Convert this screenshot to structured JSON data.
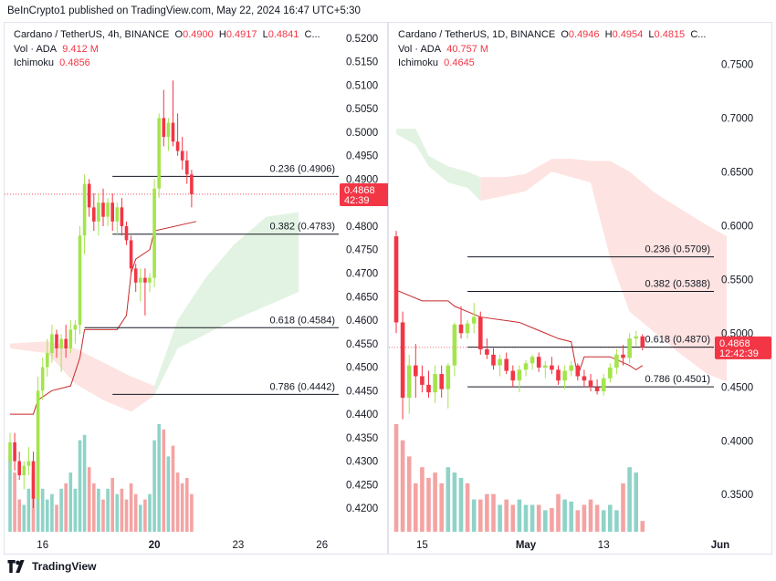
{
  "header": {
    "published": "BeInCrypto1 published on TradingView.com, May 22, 2024 16:47 UTC+5:30"
  },
  "footer": {
    "brand": "TradingView"
  },
  "colors": {
    "up": "#a4e44c",
    "down": "#f23645",
    "vol_up": "#8fd3c8",
    "vol_down": "#f4a3a3",
    "cloud_red": "#fde3e1",
    "cloud_green": "#e3f3e3",
    "fib_line": "#131722"
  },
  "chart_data": [
    {
      "type": "candlestick",
      "symbol": "Cardano / TetherUS, 4h, BINANCE",
      "ohlc": {
        "o_label": "O",
        "o": "0.4900",
        "h_label": "H",
        "h": "0.4917",
        "l_label": "L",
        "l": "0.4841",
        "c_label": "C..."
      },
      "vol_label": "Vol · ADA",
      "vol_value": "9.412 M",
      "ichimoku_label": "Ichimoku",
      "ichimoku_value": "0.4856",
      "y_ticks": [
        "0.5200",
        "0.5150",
        "0.5100",
        "0.5050",
        "0.5000",
        "0.4950",
        "0.4900",
        "0.4850",
        "0.4800",
        "0.4750",
        "0.4700",
        "0.4650",
        "0.4600",
        "0.4550",
        "0.4500",
        "0.4450",
        "0.4400",
        "0.4350",
        "0.4300",
        "0.4250",
        "0.4200"
      ],
      "ylim": [
        0.4175,
        0.5225
      ],
      "x_ticks": [
        {
          "label": "16",
          "index": 7,
          "bold": false
        },
        {
          "label": "20",
          "index": 31,
          "bold": true
        },
        {
          "label": "23",
          "index": 49,
          "bold": false
        },
        {
          "label": "26",
          "index": 67,
          "bold": false
        }
      ],
      "total_slots": 72,
      "fib_levels": [
        {
          "label": "0.236 (0.4906)",
          "value": 0.4906,
          "start_index": 22
        },
        {
          "label": "0.382 (0.4783)",
          "value": 0.4783,
          "start_index": 22
        },
        {
          "label": "0.618 (0.4584)",
          "value": 0.4584,
          "start_index": 16
        },
        {
          "label": "0.786 (0.4442)",
          "value": 0.4442,
          "start_index": 22
        }
      ],
      "price_tag": {
        "value": "0.4868",
        "time": "42:39",
        "price": 0.4868
      },
      "candles": [
        [
          0.43,
          0.436,
          0.428,
          0.434
        ],
        [
          0.434,
          0.436,
          0.428,
          0.43
        ],
        [
          0.43,
          0.432,
          0.426,
          0.427
        ],
        [
          0.427,
          0.43,
          0.424,
          0.429
        ],
        [
          0.429,
          0.433,
          0.427,
          0.43
        ],
        [
          0.43,
          0.432,
          0.42,
          0.422
        ],
        [
          0.422,
          0.448,
          0.42,
          0.445
        ],
        [
          0.445,
          0.452,
          0.443,
          0.45
        ],
        [
          0.45,
          0.456,
          0.448,
          0.453
        ],
        [
          0.453,
          0.459,
          0.451,
          0.457
        ],
        [
          0.457,
          0.458,
          0.452,
          0.454
        ],
        [
          0.454,
          0.457,
          0.449,
          0.456
        ],
        [
          0.456,
          0.459,
          0.452,
          0.454
        ],
        [
          0.454,
          0.46,
          0.453,
          0.458
        ],
        [
          0.458,
          0.46,
          0.455,
          0.459
        ],
        [
          0.459,
          0.48,
          0.457,
          0.478
        ],
        [
          0.478,
          0.491,
          0.474,
          0.489
        ],
        [
          0.489,
          0.49,
          0.482,
          0.484
        ],
        [
          0.484,
          0.487,
          0.479,
          0.481
        ],
        [
          0.481,
          0.487,
          0.478,
          0.485
        ],
        [
          0.485,
          0.488,
          0.48,
          0.482
        ],
        [
          0.482,
          0.486,
          0.48,
          0.485
        ],
        [
          0.485,
          0.487,
          0.479,
          0.481
        ],
        [
          0.481,
          0.485,
          0.478,
          0.484
        ],
        [
          0.484,
          0.486,
          0.478,
          0.48
        ],
        [
          0.48,
          0.481,
          0.476,
          0.477
        ],
        [
          0.477,
          0.478,
          0.47,
          0.471
        ],
        [
          0.471,
          0.472,
          0.466,
          0.468
        ],
        [
          0.468,
          0.471,
          0.464,
          0.469
        ],
        [
          0.469,
          0.471,
          0.461,
          0.468
        ],
        [
          0.468,
          0.47,
          0.466,
          0.469
        ],
        [
          0.469,
          0.49,
          0.467,
          0.488
        ],
        [
          0.488,
          0.504,
          0.486,
          0.503
        ],
        [
          0.503,
          0.509,
          0.497,
          0.499
        ],
        [
          0.499,
          0.503,
          0.496,
          0.502
        ],
        [
          0.502,
          0.511,
          0.497,
          0.498
        ],
        [
          0.498,
          0.504,
          0.495,
          0.496
        ],
        [
          0.496,
          0.499,
          0.492,
          0.494
        ],
        [
          0.494,
          0.496,
          0.489,
          0.491
        ],
        [
          0.491,
          0.492,
          0.484,
          0.4868
        ]
      ],
      "volumes": [
        0.7,
        0.55,
        0.3,
        0.25,
        0.4,
        0.55,
        0.7,
        0.4,
        0.3,
        0.35,
        0.25,
        0.4,
        0.45,
        0.55,
        0.4,
        0.85,
        0.9,
        0.6,
        0.45,
        0.4,
        0.3,
        0.4,
        0.5,
        0.35,
        0.4,
        0.3,
        0.45,
        0.35,
        0.25,
        0.3,
        0.35,
        0.85,
        1.0,
        0.95,
        0.7,
        0.8,
        0.55,
        0.45,
        0.5,
        0.35
      ],
      "vol_up": [
        true,
        false,
        false,
        true,
        true,
        false,
        true,
        true,
        true,
        true,
        false,
        true,
        false,
        true,
        true,
        true,
        true,
        false,
        false,
        true,
        false,
        true,
        false,
        true,
        false,
        false,
        false,
        false,
        true,
        false,
        true,
        true,
        true,
        false,
        true,
        false,
        false,
        false,
        false,
        false
      ],
      "tenkan": [
        [
          0,
          0.44
        ],
        [
          5,
          0.44
        ],
        [
          6,
          0.443
        ],
        [
          9,
          0.445
        ],
        [
          13,
          0.446
        ],
        [
          15,
          0.452
        ],
        [
          16,
          0.458
        ],
        [
          23,
          0.458
        ],
        [
          25,
          0.461
        ],
        [
          26,
          0.47
        ],
        [
          27,
          0.473
        ],
        [
          30,
          0.475
        ],
        [
          31,
          0.479
        ],
        [
          40,
          0.481
        ]
      ],
      "cloud": {
        "red": [
          [
            0,
            0.455,
            0.454
          ],
          [
            8,
            0.4555,
            0.453
          ],
          [
            14,
            0.454,
            0.4465
          ],
          [
            20,
            0.451,
            0.443
          ],
          [
            26,
            0.448,
            0.4405
          ],
          [
            31,
            0.446,
            0.444
          ]
        ],
        "green": [
          [
            31,
            0.444,
            0.446
          ],
          [
            36,
            0.454,
            0.46
          ],
          [
            42,
            0.457,
            0.469
          ],
          [
            48,
            0.46,
            0.476
          ],
          [
            55,
            0.463,
            0.482
          ],
          [
            62,
            0.466,
            0.483
          ]
        ]
      }
    },
    {
      "type": "candlestick",
      "symbol": "Cardano / TetherUS, 1D, BINANCE",
      "ohlc": {
        "o_label": "O",
        "o": "0.4946",
        "h_label": "H",
        "h": "0.4954",
        "l_label": "L",
        "l": "0.4815",
        "c_label": "C..."
      },
      "vol_label": "Vol · ADA",
      "vol_value": "40.757 M",
      "ichimoku_label": "Ichimoku",
      "ichimoku_value": "0.4645",
      "y_ticks": [
        "0.7500",
        "0.7000",
        "0.6500",
        "0.6000",
        "0.5500",
        "0.5000",
        "0.4500",
        "0.4000",
        "0.3500"
      ],
      "ylim": [
        0.318,
        0.785
      ],
      "x_ticks": [
        {
          "label": "15",
          "index": 4,
          "bold": false
        },
        {
          "label": "May",
          "index": 20,
          "bold": true
        },
        {
          "label": "13",
          "index": 32,
          "bold": false
        },
        {
          "label": "Jun",
          "index": 50,
          "bold": true
        }
      ],
      "total_slots": 52,
      "fib_levels": [
        {
          "label": "0.236 (0.5709)",
          "value": 0.5709,
          "start_index": 11
        },
        {
          "label": "0.382 (0.5388)",
          "value": 0.5388,
          "start_index": 11
        },
        {
          "label": "0.618 (0.4870)",
          "value": 0.487,
          "start_index": 11
        },
        {
          "label": "0.786 (0.4501)",
          "value": 0.4501,
          "start_index": 11
        }
      ],
      "price_tag": {
        "value": "0.4868",
        "time": "12:42:39",
        "price": 0.4868
      },
      "candles": [
        [
          0.59,
          0.595,
          0.5,
          0.51
        ],
        [
          0.51,
          0.52,
          0.42,
          0.44
        ],
        [
          0.44,
          0.48,
          0.425,
          0.47
        ],
        [
          0.47,
          0.49,
          0.44,
          0.46
        ],
        [
          0.46,
          0.47,
          0.445,
          0.452
        ],
        [
          0.452,
          0.465,
          0.44,
          0.445
        ],
        [
          0.445,
          0.47,
          0.435,
          0.462
        ],
        [
          0.462,
          0.47,
          0.44,
          0.448
        ],
        [
          0.448,
          0.472,
          0.43,
          0.47
        ],
        [
          0.47,
          0.51,
          0.46,
          0.508
        ],
        [
          0.508,
          0.525,
          0.495,
          0.5
        ],
        [
          0.5,
          0.512,
          0.495,
          0.509
        ],
        [
          0.509,
          0.528,
          0.5,
          0.515
        ],
        [
          0.515,
          0.52,
          0.48,
          0.485
        ],
        [
          0.485,
          0.495,
          0.476,
          0.48
        ],
        [
          0.48,
          0.486,
          0.466,
          0.47
        ],
        [
          0.47,
          0.48,
          0.46,
          0.476
        ],
        [
          0.476,
          0.482,
          0.462,
          0.465
        ],
        [
          0.465,
          0.47,
          0.45,
          0.456
        ],
        [
          0.456,
          0.47,
          0.445,
          0.466
        ],
        [
          0.466,
          0.475,
          0.46,
          0.472
        ],
        [
          0.472,
          0.48,
          0.466,
          0.478
        ],
        [
          0.478,
          0.482,
          0.464,
          0.468
        ],
        [
          0.468,
          0.474,
          0.458,
          0.47
        ],
        [
          0.47,
          0.478,
          0.462,
          0.466
        ],
        [
          0.466,
          0.47,
          0.452,
          0.456
        ],
        [
          0.456,
          0.47,
          0.448,
          0.465
        ],
        [
          0.465,
          0.474,
          0.46,
          0.47
        ],
        [
          0.47,
          0.472,
          0.456,
          0.46
        ],
        [
          0.46,
          0.466,
          0.45,
          0.456
        ],
        [
          0.456,
          0.462,
          0.446,
          0.45
        ],
        [
          0.45,
          0.457,
          0.443,
          0.446
        ],
        [
          0.446,
          0.462,
          0.442,
          0.458
        ],
        [
          0.458,
          0.472,
          0.454,
          0.468
        ],
        [
          0.468,
          0.485,
          0.462,
          0.48
        ],
        [
          0.48,
          0.489,
          0.47,
          0.477
        ],
        [
          0.477,
          0.5,
          0.472,
          0.495
        ],
        [
          0.495,
          0.502,
          0.488,
          0.497
        ],
        [
          0.497,
          0.499,
          0.484,
          0.4868
        ]
      ],
      "volumes": [
        1.0,
        0.85,
        0.7,
        0.45,
        0.6,
        0.5,
        0.55,
        0.45,
        0.6,
        0.55,
        0.5,
        0.45,
        0.3,
        0.3,
        0.35,
        0.35,
        0.25,
        0.3,
        0.25,
        0.3,
        0.25,
        0.25,
        0.25,
        0.2,
        0.22,
        0.35,
        0.3,
        0.28,
        0.2,
        0.25,
        0.3,
        0.25,
        0.2,
        0.25,
        0.2,
        0.45,
        0.6,
        0.55,
        0.1
      ],
      "vol_up": [
        false,
        false,
        false,
        false,
        false,
        false,
        false,
        false,
        true,
        true,
        true,
        false,
        true,
        false,
        false,
        false,
        true,
        false,
        false,
        true,
        true,
        true,
        false,
        true,
        false,
        false,
        true,
        true,
        false,
        false,
        false,
        false,
        true,
        true,
        true,
        false,
        true,
        true,
        false
      ],
      "tenkan": [
        [
          0,
          0.59
        ],
        [
          0,
          0.54
        ],
        [
          4,
          0.53
        ],
        [
          8,
          0.53
        ],
        [
          9,
          0.525
        ],
        [
          11,
          0.52
        ],
        [
          13,
          0.515
        ],
        [
          19,
          0.51
        ],
        [
          21,
          0.505
        ],
        [
          23,
          0.5
        ],
        [
          25,
          0.495
        ],
        [
          27,
          0.492
        ],
        [
          28,
          0.46
        ],
        [
          29,
          0.478
        ],
        [
          33,
          0.478
        ],
        [
          36,
          0.47
        ],
        [
          37,
          0.466
        ],
        [
          38,
          0.47
        ]
      ],
      "cloud": {
        "green": [
          [
            0,
            0.685,
            0.69
          ],
          [
            3,
            0.675,
            0.69
          ],
          [
            5,
            0.655,
            0.665
          ],
          [
            8,
            0.64,
            0.655
          ],
          [
            11,
            0.635,
            0.65
          ],
          [
            13,
            0.623,
            0.645
          ]
        ],
        "red": [
          [
            13,
            0.623,
            0.645
          ],
          [
            17,
            0.628,
            0.645
          ],
          [
            20,
            0.632,
            0.648
          ],
          [
            24,
            0.65,
            0.662
          ],
          [
            27,
            0.645,
            0.662
          ],
          [
            30,
            0.64,
            0.66
          ],
          [
            33,
            0.57,
            0.66
          ],
          [
            36,
            0.52,
            0.65
          ],
          [
            40,
            0.5,
            0.63
          ],
          [
            44,
            0.48,
            0.615
          ],
          [
            48,
            0.462,
            0.6
          ],
          [
            51,
            0.455,
            0.59
          ]
        ]
      }
    }
  ]
}
